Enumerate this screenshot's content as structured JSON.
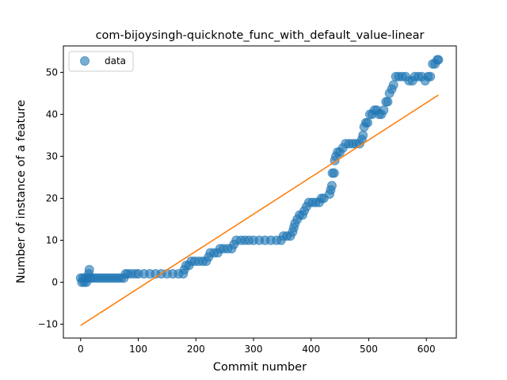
{
  "chart_data": {
    "type": "scatter",
    "title": "com-bijoysingh-quicknote_func_with_default_value-linear",
    "xlabel": "Commit number",
    "ylabel": "Number of instance of a feature",
    "xlim": [
      -30,
      652
    ],
    "ylim": [
      -13.3,
      56.3
    ],
    "xticks": [
      0,
      100,
      200,
      300,
      400,
      500,
      600
    ],
    "yticks": [
      -10,
      0,
      10,
      20,
      30,
      40,
      50
    ],
    "grid": false,
    "legend_position": "top-left",
    "series": [
      {
        "name": "data",
        "kind": "scatter",
        "color": "#1f77b4",
        "opacity": 0.6,
        "points": [
          [
            0,
            1
          ],
          [
            2,
            0
          ],
          [
            4,
            1
          ],
          [
            6,
            0
          ],
          [
            8,
            1
          ],
          [
            10,
            0
          ],
          [
            12,
            1
          ],
          [
            14,
            2
          ],
          [
            15,
            3
          ],
          [
            17,
            1
          ],
          [
            20,
            1
          ],
          [
            25,
            1
          ],
          [
            30,
            1
          ],
          [
            35,
            1
          ],
          [
            40,
            1
          ],
          [
            45,
            1
          ],
          [
            50,
            1
          ],
          [
            55,
            1
          ],
          [
            60,
            1
          ],
          [
            65,
            1
          ],
          [
            70,
            1
          ],
          [
            75,
            1
          ],
          [
            78,
            2
          ],
          [
            82,
            2
          ],
          [
            88,
            2
          ],
          [
            95,
            2
          ],
          [
            100,
            2
          ],
          [
            110,
            2
          ],
          [
            120,
            2
          ],
          [
            130,
            2
          ],
          [
            140,
            2
          ],
          [
            150,
            2
          ],
          [
            160,
            2
          ],
          [
            170,
            2
          ],
          [
            178,
            2
          ],
          [
            180,
            3
          ],
          [
            183,
            4
          ],
          [
            188,
            4
          ],
          [
            192,
            5
          ],
          [
            198,
            5
          ],
          [
            205,
            5
          ],
          [
            212,
            5
          ],
          [
            218,
            5
          ],
          [
            222,
            6
          ],
          [
            225,
            7
          ],
          [
            232,
            7
          ],
          [
            238,
            7
          ],
          [
            242,
            8
          ],
          [
            248,
            8
          ],
          [
            255,
            8
          ],
          [
            262,
            8
          ],
          [
            266,
            9
          ],
          [
            270,
            10
          ],
          [
            278,
            10
          ],
          [
            285,
            10
          ],
          [
            292,
            10
          ],
          [
            300,
            10
          ],
          [
            310,
            10
          ],
          [
            320,
            10
          ],
          [
            330,
            10
          ],
          [
            340,
            10
          ],
          [
            348,
            10
          ],
          [
            352,
            11
          ],
          [
            358,
            11
          ],
          [
            364,
            11
          ],
          [
            368,
            12
          ],
          [
            370,
            13
          ],
          [
            372,
            14
          ],
          [
            376,
            15
          ],
          [
            380,
            16
          ],
          [
            385,
            16
          ],
          [
            388,
            17
          ],
          [
            392,
            18
          ],
          [
            396,
            19
          ],
          [
            402,
            19
          ],
          [
            408,
            19
          ],
          [
            414,
            19
          ],
          [
            418,
            20
          ],
          [
            422,
            20
          ],
          [
            432,
            21
          ],
          [
            434,
            22
          ],
          [
            436,
            23
          ],
          [
            437,
            26
          ],
          [
            440,
            26
          ],
          [
            441,
            29
          ],
          [
            443,
            30
          ],
          [
            446,
            31
          ],
          [
            450,
            31
          ],
          [
            455,
            32
          ],
          [
            460,
            33
          ],
          [
            466,
            33
          ],
          [
            472,
            33
          ],
          [
            478,
            33
          ],
          [
            484,
            33
          ],
          [
            488,
            34
          ],
          [
            490,
            35
          ],
          [
            492,
            37
          ],
          [
            495,
            38
          ],
          [
            498,
            38
          ],
          [
            502,
            40
          ],
          [
            506,
            40
          ],
          [
            510,
            41
          ],
          [
            514,
            41
          ],
          [
            518,
            40
          ],
          [
            522,
            40
          ],
          [
            526,
            41
          ],
          [
            530,
            43
          ],
          [
            533,
            43
          ],
          [
            536,
            45
          ],
          [
            540,
            46
          ],
          [
            543,
            47
          ],
          [
            547,
            49
          ],
          [
            552,
            49
          ],
          [
            558,
            49
          ],
          [
            564,
            49
          ],
          [
            570,
            48
          ],
          [
            576,
            48
          ],
          [
            580,
            49
          ],
          [
            586,
            49
          ],
          [
            592,
            49
          ],
          [
            598,
            48
          ],
          [
            603,
            49
          ],
          [
            607,
            49
          ],
          [
            611,
            52
          ],
          [
            615,
            52
          ],
          [
            619,
            53
          ],
          [
            621,
            53
          ]
        ]
      },
      {
        "name": "",
        "kind": "line",
        "color": "#ff7f0e",
        "points": [
          [
            0,
            -10.3
          ],
          [
            621,
            44.6
          ]
        ]
      }
    ]
  }
}
